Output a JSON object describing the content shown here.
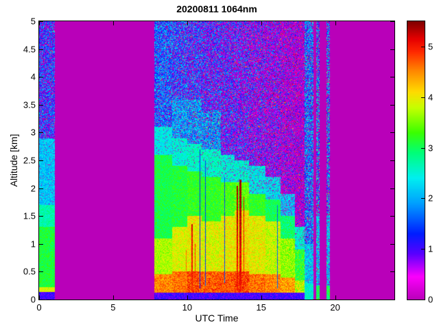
{
  "chart_data": {
    "type": "heatmap",
    "title": "20200811 1064nm",
    "xlabel": "UTC Time",
    "ylabel": "Altitude [km]",
    "xlim": [
      0,
      24
    ],
    "ylim": [
      0,
      5
    ],
    "xticks": [
      0,
      5,
      10,
      15,
      20
    ],
    "yticks": [
      0,
      0.5,
      1,
      1.5,
      2,
      2.5,
      3,
      3.5,
      4,
      4.5,
      5
    ],
    "colorbar": {
      "vmin": 0,
      "vmax": 5.5,
      "ticks": [
        0,
        1,
        2,
        3,
        4,
        5
      ]
    },
    "background_value": 0,
    "colormap_stops": [
      [
        0.0,
        185,
        0,
        185
      ],
      [
        0.45,
        252,
        0,
        252
      ],
      [
        0.9,
        90,
        0,
        255
      ],
      [
        1.3,
        0,
        30,
        255
      ],
      [
        1.9,
        0,
        160,
        255
      ],
      [
        2.4,
        0,
        240,
        240
      ],
      [
        2.9,
        0,
        255,
        120
      ],
      [
        3.3,
        60,
        255,
        0
      ],
      [
        3.8,
        200,
        255,
        0
      ],
      [
        4.1,
        255,
        220,
        0
      ],
      [
        4.5,
        255,
        140,
        0
      ],
      [
        4.9,
        255,
        40,
        0
      ],
      [
        5.15,
        230,
        0,
        0
      ],
      [
        5.5,
        125,
        0,
        0
      ]
    ],
    "layers_format": [
      "z_top_km",
      "value",
      "noise_amp",
      "gap_prob",
      "hot_speck_prob"
    ],
    "segments": [
      {
        "t0": 0.0,
        "t1": 1.07,
        "layers": [
          [
            0.13,
            1.0,
            0.3,
            0,
            0
          ],
          [
            0.22,
            3.9,
            0.3,
            0,
            0
          ],
          [
            1.3,
            3.1,
            0.25,
            0,
            0
          ],
          [
            1.7,
            2.7,
            0.25,
            0,
            0
          ],
          [
            2.9,
            2.15,
            0.35,
            0.05,
            0
          ],
          [
            5,
            1.5,
            0.8,
            0.3,
            0.01
          ]
        ]
      },
      {
        "t0": 1.07,
        "t1": 7.78,
        "layers": [
          [
            5,
            0,
            0,
            0,
            0
          ]
        ]
      },
      {
        "t0": 7.78,
        "t1": 9.0,
        "layers": [
          [
            0.12,
            1.0,
            0.3,
            0,
            0
          ],
          [
            0.45,
            4.5,
            0.35,
            0,
            0
          ],
          [
            1.1,
            3.7,
            0.3,
            0,
            0
          ],
          [
            2.6,
            3.05,
            0.25,
            0,
            0
          ],
          [
            3.1,
            2.4,
            0.3,
            0.05,
            0
          ],
          [
            5,
            1.7,
            0.8,
            0.18,
            0.01
          ]
        ]
      },
      {
        "t0": 9.0,
        "t1": 10.0,
        "layers": [
          [
            0.12,
            1.0,
            0.3,
            0,
            0
          ],
          [
            0.5,
            4.6,
            0.35,
            0,
            0
          ],
          [
            1.3,
            3.9,
            0.35,
            0,
            0
          ],
          [
            2.4,
            3.1,
            0.3,
            0,
            0
          ],
          [
            2.9,
            2.5,
            0.3,
            0.05,
            0
          ],
          [
            3.6,
            2.0,
            0.6,
            0.15,
            0.01
          ],
          [
            5,
            1.6,
            0.9,
            0.25,
            0.015
          ]
        ]
      },
      {
        "t0": 10.0,
        "t1": 11.0,
        "layers": [
          [
            0.12,
            1.0,
            0.3,
            0,
            0
          ],
          [
            0.5,
            4.8,
            0.4,
            0,
            0
          ],
          [
            1.5,
            4.0,
            0.4,
            0,
            0
          ],
          [
            2.3,
            3.2,
            0.3,
            0,
            0
          ],
          [
            2.8,
            2.6,
            0.3,
            0.05,
            0
          ],
          [
            3.6,
            2.0,
            0.7,
            0.18,
            0.015
          ],
          [
            5,
            1.5,
            0.9,
            0.3,
            0.02
          ]
        ]
      },
      {
        "t0": 11.0,
        "t1": 12.3,
        "layers": [
          [
            0.12,
            1.0,
            0.3,
            0,
            0
          ],
          [
            0.5,
            4.7,
            0.4,
            0,
            0
          ],
          [
            1.4,
            3.9,
            0.4,
            0,
            0
          ],
          [
            2.2,
            3.2,
            0.3,
            0,
            0
          ],
          [
            2.7,
            2.6,
            0.3,
            0.08,
            0
          ],
          [
            3.4,
            2.0,
            0.7,
            0.2,
            0.02
          ],
          [
            5,
            1.4,
            0.9,
            0.35,
            0.02
          ]
        ]
      },
      {
        "t0": 12.3,
        "t1": 13.2,
        "layers": [
          [
            0.12,
            1.0,
            0.3,
            0,
            0
          ],
          [
            0.5,
            4.7,
            0.4,
            0,
            0
          ],
          [
            1.5,
            4.0,
            0.4,
            0,
            0
          ],
          [
            2.1,
            3.3,
            0.3,
            0,
            0
          ],
          [
            2.6,
            2.5,
            0.35,
            0.1,
            0
          ],
          [
            5,
            1.4,
            0.9,
            0.38,
            0.025
          ]
        ]
      },
      {
        "t0": 13.2,
        "t1": 14.2,
        "layers": [
          [
            0.12,
            1.0,
            0.3,
            0,
            0
          ],
          [
            0.5,
            4.8,
            0.4,
            0,
            0
          ],
          [
            1.6,
            4.1,
            0.4,
            0,
            0
          ],
          [
            2.1,
            3.4,
            0.35,
            0,
            0
          ],
          [
            2.5,
            2.5,
            0.4,
            0.1,
            0
          ],
          [
            5,
            1.35,
            0.95,
            0.4,
            0.025
          ]
        ]
      },
      {
        "t0": 14.2,
        "t1": 15.3,
        "layers": [
          [
            0.12,
            1.0,
            0.3,
            0,
            0
          ],
          [
            0.45,
            4.6,
            0.4,
            0,
            0
          ],
          [
            1.5,
            3.95,
            0.4,
            0,
            0
          ],
          [
            1.9,
            3.2,
            0.3,
            0,
            0
          ],
          [
            2.4,
            2.4,
            0.4,
            0.12,
            0
          ],
          [
            5,
            1.25,
            0.95,
            0.45,
            0.03
          ]
        ]
      },
      {
        "t0": 15.3,
        "t1": 16.3,
        "layers": [
          [
            0.12,
            1.0,
            0.3,
            0,
            0
          ],
          [
            0.45,
            4.5,
            0.4,
            0,
            0
          ],
          [
            1.4,
            3.8,
            0.4,
            0,
            0
          ],
          [
            1.8,
            3.0,
            0.3,
            0,
            0
          ],
          [
            2.2,
            2.3,
            0.4,
            0.15,
            0
          ],
          [
            5,
            1.15,
            0.95,
            0.5,
            0.035
          ]
        ]
      },
      {
        "t0": 16.3,
        "t1": 17.3,
        "layers": [
          [
            0.12,
            1.0,
            0.3,
            0,
            0
          ],
          [
            0.4,
            4.4,
            0.4,
            0,
            0
          ],
          [
            1.1,
            3.6,
            0.4,
            0,
            0
          ],
          [
            1.5,
            2.9,
            0.35,
            0,
            0
          ],
          [
            1.9,
            2.2,
            0.4,
            0.18,
            0
          ],
          [
            5,
            1.0,
            0.95,
            0.55,
            0.04
          ]
        ]
      },
      {
        "t0": 17.3,
        "t1": 17.95,
        "layers": [
          [
            0.12,
            1.0,
            0.3,
            0,
            0
          ],
          [
            0.35,
            3.8,
            0.5,
            0,
            0
          ],
          [
            0.9,
            3.2,
            0.45,
            0,
            0
          ],
          [
            1.3,
            2.5,
            0.4,
            0.1,
            0
          ],
          [
            5,
            0.9,
            0.9,
            0.6,
            0.04
          ]
        ]
      },
      {
        "t0": 17.95,
        "t1": 18.55,
        "layers": [
          [
            0.3,
            2.5,
            0.4,
            0,
            0
          ],
          [
            1.0,
            2.2,
            0.5,
            0.08,
            0
          ],
          [
            5,
            1.8,
            0.8,
            0.25,
            0.02
          ]
        ]
      },
      {
        "t0": 18.55,
        "t1": 18.72,
        "layers": [
          [
            5,
            0,
            0,
            0,
            0
          ]
        ]
      },
      {
        "t0": 18.72,
        "t1": 18.95,
        "layers": [
          [
            0.25,
            3.0,
            0.4,
            0,
            0
          ],
          [
            1.5,
            2.2,
            0.6,
            0.15,
            0.03
          ],
          [
            5,
            1.8,
            1.1,
            0.3,
            0.05
          ]
        ]
      },
      {
        "t0": 18.95,
        "t1": 19.42,
        "layers": [
          [
            5,
            0,
            0,
            0,
            0
          ]
        ]
      },
      {
        "t0": 19.42,
        "t1": 19.65,
        "layers": [
          [
            0.25,
            3.0,
            0.4,
            0,
            0
          ],
          [
            1.5,
            2.2,
            0.6,
            0.15,
            0.03
          ],
          [
            5,
            1.8,
            1.1,
            0.3,
            0.05
          ]
        ]
      },
      {
        "t0": 19.65,
        "t1": 24.0,
        "layers": [
          [
            5,
            0,
            0,
            0,
            0
          ]
        ]
      }
    ],
    "streaks": [
      {
        "t": 9.95,
        "w": 0.06,
        "z0": 0.15,
        "z1": 0.9,
        "v": 4.6,
        "g": 0
      },
      {
        "t": 10.32,
        "w": 0.1,
        "z0": 0.15,
        "z1": 1.35,
        "v": 4.85,
        "g": 0.3
      },
      {
        "t": 10.55,
        "w": 0.07,
        "z0": 0.15,
        "z1": 1.0,
        "v": 4.7,
        "g": 0.2
      },
      {
        "t": 13.38,
        "w": 0.09,
        "z0": 0.15,
        "z1": 2.05,
        "v": 4.9,
        "g": 0.5
      },
      {
        "t": 13.6,
        "w": 0.1,
        "z0": 0.15,
        "z1": 2.15,
        "v": 4.95,
        "g": 0.5
      },
      {
        "t": 13.82,
        "w": 0.07,
        "z0": 0.15,
        "z1": 1.85,
        "v": 4.8,
        "g": 0.4
      },
      {
        "t": 10.88,
        "w": 0.06,
        "z0": 0.2,
        "z1": 2.7,
        "v": 1.3,
        "g": 0
      },
      {
        "t": 11.22,
        "w": 0.05,
        "z0": 0.25,
        "z1": 2.5,
        "v": 1.4,
        "g": 0
      },
      {
        "t": 12.55,
        "w": 0.05,
        "z0": 0.3,
        "z1": 2.2,
        "v": 1.5,
        "g": 0
      },
      {
        "t": 16.12,
        "w": 0.05,
        "z0": 0.2,
        "z1": 1.7,
        "v": 1.6,
        "g": 0
      }
    ]
  }
}
